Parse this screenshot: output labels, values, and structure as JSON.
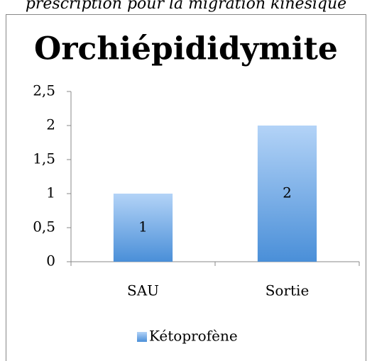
{
  "caption": "prescription pour la migration kinésique",
  "chart_data": {
    "type": "bar",
    "title": "Orchiépididymite",
    "categories": [
      "SAU",
      "Sortie"
    ],
    "series": [
      {
        "name": "Kétoprofène",
        "color": "#4a8fd8",
        "values": [
          1,
          2
        ]
      }
    ],
    "ylim": [
      0,
      2.5
    ],
    "yticks": [
      0,
      {
        "value": 0.5,
        "label": "0,5"
      },
      1,
      {
        "value": 1.5,
        "label": "1,5"
      },
      2,
      {
        "value": 2.5,
        "label": "2,5"
      }
    ],
    "legend": "bottom"
  }
}
